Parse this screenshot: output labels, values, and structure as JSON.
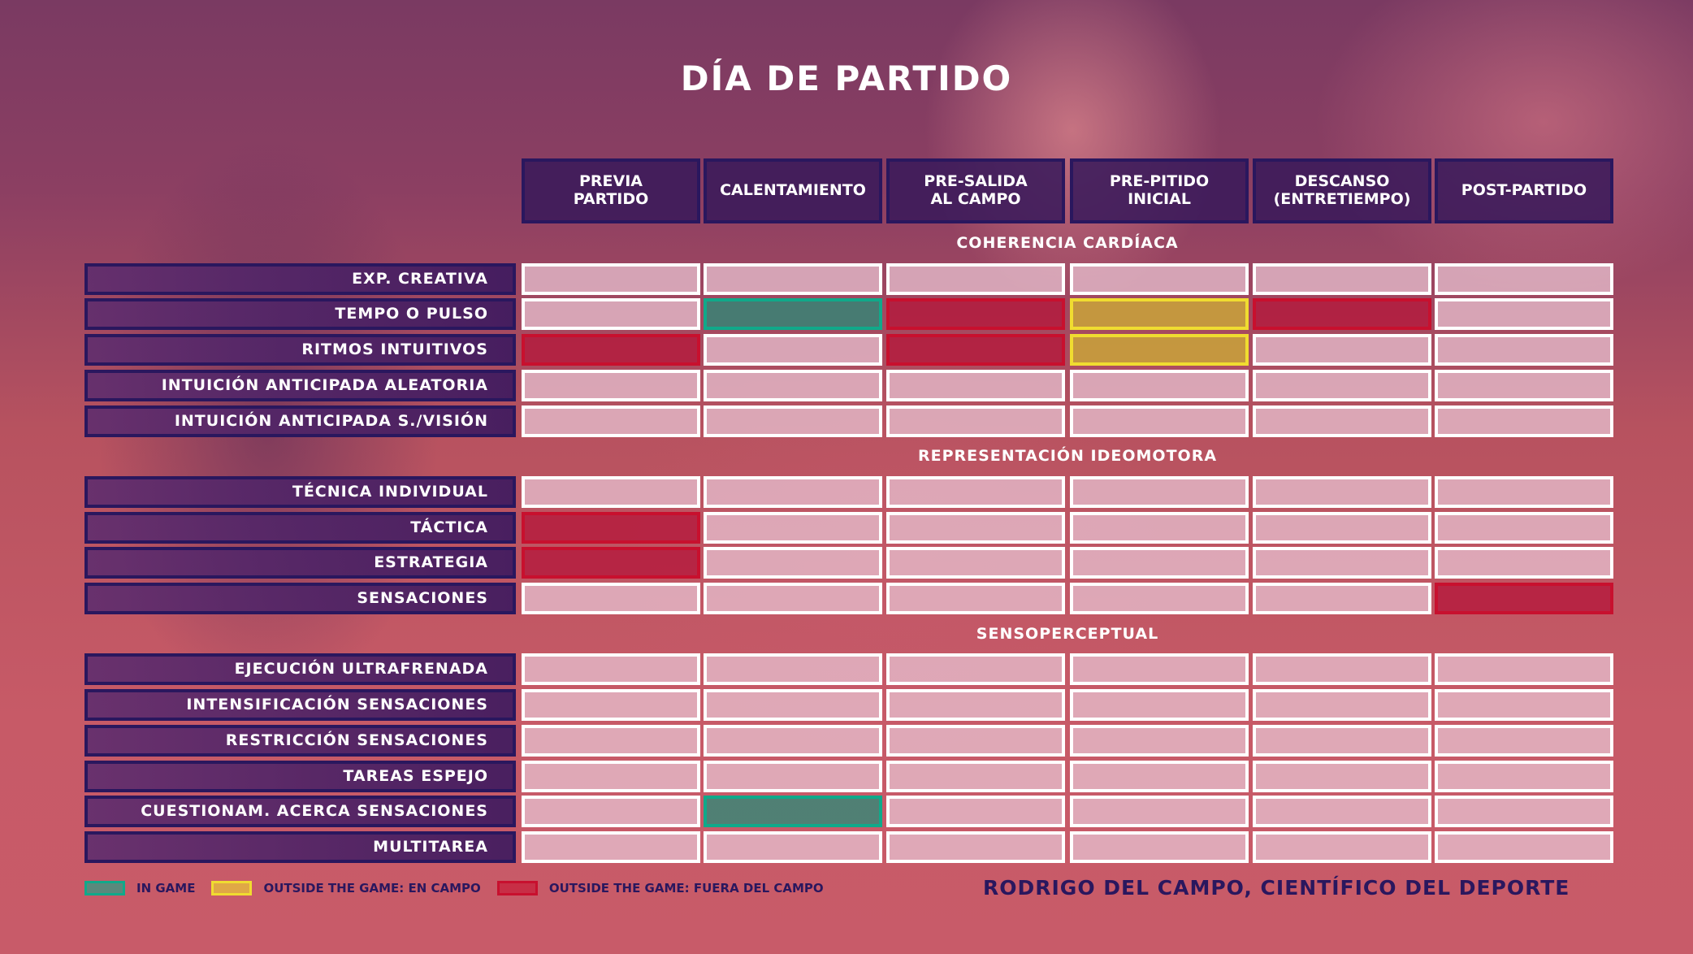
{
  "title": "DÍA DE PARTIDO",
  "columns": [
    "PREVIA\nPARTIDO",
    "CALENTAMIENTO",
    "PRE-SALIDA\nAL CAMPO",
    "PRE-PITIDO\nINICIAL",
    "DESCANSO\n(ENTRETIEMPO)",
    "POST-PARTIDO"
  ],
  "sections": [
    {
      "title": "COHERENCIA CARDÍACA",
      "rows": [
        {
          "label": "EXP. CREATIVA",
          "cells": [
            "",
            "",
            "",
            "",
            "",
            ""
          ]
        },
        {
          "label": "TEMPO O PULSO",
          "cells": [
            "",
            "in_game",
            "fuera_del_campo",
            "en_campo",
            "fuera_del_campo",
            ""
          ]
        },
        {
          "label": "RITMOS INTUITIVOS",
          "cells": [
            "fuera_del_campo",
            "",
            "fuera_del_campo",
            "en_campo",
            "",
            ""
          ]
        },
        {
          "label": "INTUICIÓN ANTICIPADA ALEATORIA",
          "cells": [
            "",
            "",
            "",
            "",
            "",
            ""
          ]
        },
        {
          "label": "INTUICIÓN ANTICIPADA S./VISIÓN",
          "cells": [
            "",
            "",
            "",
            "",
            "",
            ""
          ]
        }
      ]
    },
    {
      "title": "REPRESENTACIÓN IDEOMOTORA",
      "rows": [
        {
          "label": "TÉCNICA INDIVIDUAL",
          "cells": [
            "",
            "",
            "",
            "",
            "",
            ""
          ]
        },
        {
          "label": "TÁCTICA",
          "cells": [
            "fuera_del_campo",
            "",
            "",
            "",
            "",
            ""
          ]
        },
        {
          "label": "ESTRATEGIA",
          "cells": [
            "fuera_del_campo",
            "",
            "",
            "",
            "",
            ""
          ]
        },
        {
          "label": "SENSACIONES",
          "cells": [
            "",
            "",
            "",
            "",
            "",
            "fuera_del_campo"
          ]
        }
      ]
    },
    {
      "title": "SENSOPERCEPTUAL",
      "rows": [
        {
          "label": "EJECUCIÓN ULTRAFRENADA",
          "cells": [
            "",
            "",
            "",
            "",
            "",
            ""
          ]
        },
        {
          "label": "INTENSIFICACIÓN SENSACIONES",
          "cells": [
            "",
            "",
            "",
            "",
            "",
            ""
          ]
        },
        {
          "label": "RESTRICCIÓN SENSACIONES",
          "cells": [
            "",
            "",
            "",
            "",
            "",
            ""
          ]
        },
        {
          "label": "TAREAS ESPEJO",
          "cells": [
            "",
            "",
            "",
            "",
            "",
            ""
          ]
        },
        {
          "label": "CUESTIONAM. ACERCA SENSACIONES",
          "cells": [
            "",
            "in_game",
            "",
            "",
            "",
            ""
          ]
        },
        {
          "label": "MULTITAREA",
          "cells": [
            "",
            "",
            "",
            "",
            "",
            ""
          ]
        }
      ]
    }
  ],
  "legend": [
    {
      "key": "in_game",
      "label": "IN GAME",
      "color": "#10a98a"
    },
    {
      "key": "en_campo",
      "label": "OUTSIDE THE GAME: EN CAMPO",
      "color": "#f0dc30"
    },
    {
      "key": "fuera_del_campo",
      "label": "OUTSIDE THE GAME: FUERA DEL CAMPO",
      "color": "#c8102e"
    }
  ],
  "credit": "RODRIGO DEL CAMPO, CIENTÍFICO DEL DEPORTE"
}
